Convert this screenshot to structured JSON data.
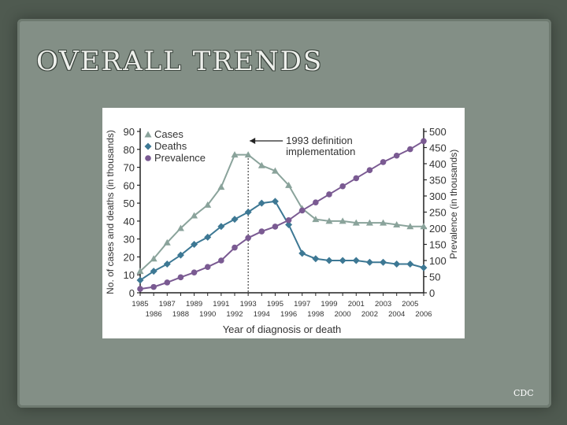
{
  "slide": {
    "title": "OVERALL TRENDS",
    "credit": "CDC"
  },
  "colors": {
    "cases": "#8aa39b",
    "deaths": "#3d7894",
    "prevalence": "#7a5a92",
    "axis": "#222222",
    "text": "#333333"
  },
  "chart_data": {
    "type": "line",
    "xlabel": "Year of diagnosis or death",
    "ylabel_left": "No. of cases and deaths (in thousands)",
    "ylabel_right": "Prevalence (in thousands)",
    "ylim_left": [
      0,
      90
    ],
    "ylim_right": [
      0,
      500
    ],
    "yticks_left": [
      "0",
      "10",
      "20",
      "30",
      "40",
      "50",
      "60",
      "70",
      "80",
      "90"
    ],
    "yticks_right": [
      "0",
      "50",
      "100",
      "150",
      "200",
      "250",
      "300",
      "350",
      "400",
      "450",
      "500"
    ],
    "xticks_top_row": [
      "1985",
      "1987",
      "1989",
      "1991",
      "1993",
      "1995",
      "1997",
      "1999",
      "2001",
      "2003",
      "2005"
    ],
    "xticks_bottom_row": [
      "1986",
      "1988",
      "1990",
      "1992",
      "1994",
      "1996",
      "1998",
      "2000",
      "2002",
      "2004",
      "2006"
    ],
    "x": [
      1985,
      1986,
      1987,
      1988,
      1989,
      1990,
      1991,
      1992,
      1993,
      1994,
      1995,
      1996,
      1997,
      1998,
      1999,
      2000,
      2001,
      2002,
      2003,
      2004,
      2005,
      2006
    ],
    "annotation": {
      "year": 1993,
      "line1": "1993 definition",
      "line2": "implementation"
    },
    "legend": [
      "Cases",
      "Deaths",
      "Prevalence"
    ],
    "series": [
      {
        "name": "Cases",
        "axis": "left",
        "marker": "triangle",
        "values": [
          12,
          19,
          28,
          36,
          43,
          49,
          59,
          77,
          77,
          71,
          68,
          60,
          47,
          41,
          40,
          40,
          39,
          39,
          39,
          38,
          37,
          37
        ]
      },
      {
        "name": "Deaths",
        "axis": "left",
        "marker": "diamond",
        "values": [
          7,
          12,
          16,
          21,
          27,
          31,
          37,
          41,
          45,
          50,
          51,
          38,
          22,
          19,
          18,
          18,
          18,
          17,
          17,
          16,
          16,
          14
        ]
      },
      {
        "name": "Prevalence",
        "axis": "right",
        "marker": "circle",
        "values": [
          12,
          18,
          32,
          48,
          63,
          80,
          100,
          140,
          170,
          190,
          205,
          225,
          255,
          280,
          305,
          330,
          355,
          380,
          405,
          425,
          445,
          470
        ]
      }
    ]
  }
}
